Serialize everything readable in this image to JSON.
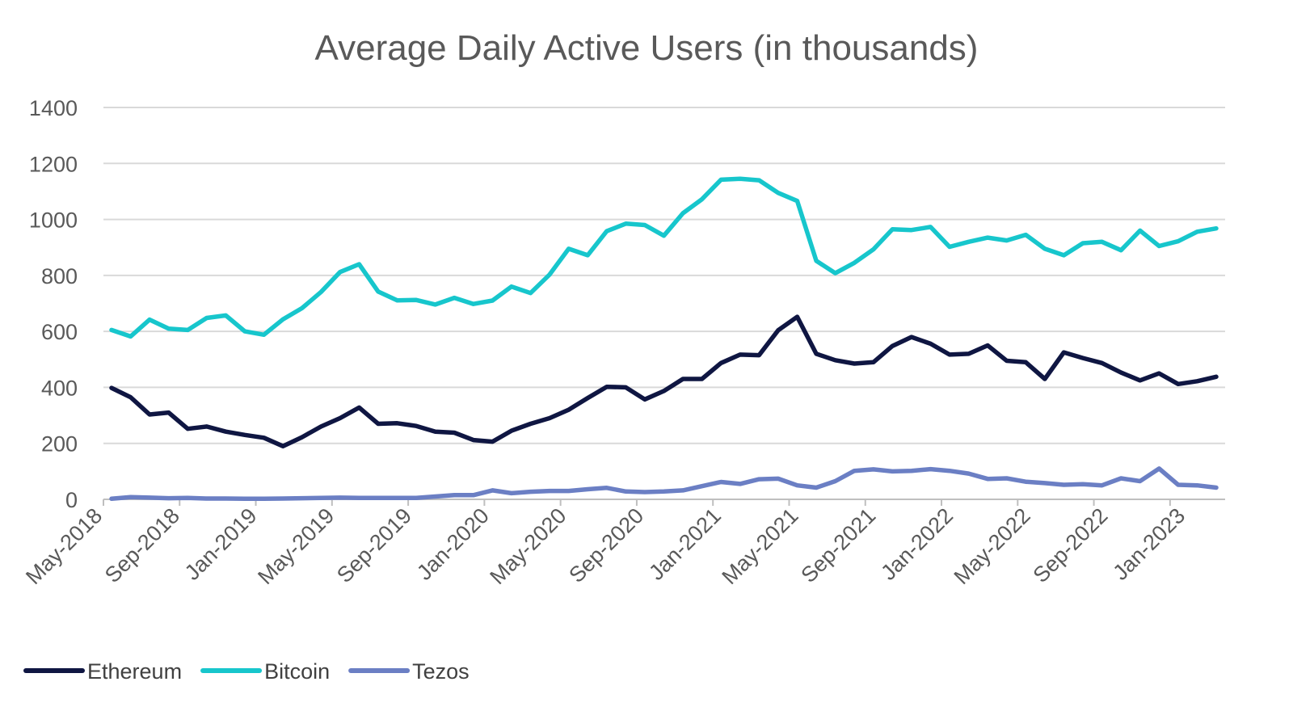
{
  "chart_data": {
    "type": "line",
    "title": "Average Daily Active Users (in thousands)",
    "xlabel": "",
    "ylabel": "",
    "ylim": [
      0,
      1400
    ],
    "yticks": [
      "0",
      "200",
      "400",
      "600",
      "800",
      "1000",
      "1200",
      "1400"
    ],
    "x": [
      "May-2018",
      "Jun-2018",
      "Jul-2018",
      "Aug-2018",
      "Sep-2018",
      "Oct-2018",
      "Nov-2018",
      "Dec-2018",
      "Jan-2019",
      "Feb-2019",
      "Mar-2019",
      "Apr-2019",
      "May-2019",
      "Jun-2019",
      "Jul-2019",
      "Aug-2019",
      "Sep-2019",
      "Oct-2019",
      "Nov-2019",
      "Dec-2019",
      "Jan-2020",
      "Feb-2020",
      "Mar-2020",
      "Apr-2020",
      "May-2020",
      "Jun-2020",
      "Jul-2020",
      "Aug-2020",
      "Sep-2020",
      "Oct-2020",
      "Nov-2020",
      "Dec-2020",
      "Jan-2021",
      "Feb-2021",
      "Mar-2021",
      "Apr-2021",
      "May-2021",
      "Jun-2021",
      "Jul-2021",
      "Aug-2021",
      "Sep-2021",
      "Oct-2021",
      "Nov-2021",
      "Dec-2021",
      "Jan-2022",
      "Feb-2022",
      "Mar-2022",
      "Apr-2022",
      "May-2022",
      "Jun-2022",
      "Jul-2022",
      "Aug-2022",
      "Sep-2022",
      "Oct-2022",
      "Nov-2022",
      "Dec-2022",
      "Jan-2023",
      "Feb-2023",
      "Mar-2023"
    ],
    "xtick_labels": [
      "May-2018",
      "Sep-2018",
      "Jan-2019",
      "May-2019",
      "Sep-2019",
      "Jan-2020",
      "May-2020",
      "Sep-2020",
      "Jan-2021",
      "May-2021",
      "Sep-2021",
      "Jan-2022",
      "May-2022",
      "Sep-2022",
      "Jan-2023"
    ],
    "grid": true,
    "legend_position": "bottom-left",
    "series": [
      {
        "name": "Ethereum",
        "color": "#0f1642",
        "values": [
          398,
          365,
          303,
          310,
          252,
          260,
          242,
          230,
          220,
          190,
          222,
          260,
          290,
          328,
          270,
          272,
          262,
          242,
          238,
          212,
          206,
          245,
          270,
          290,
          320,
          362,
          402,
          400,
          357,
          387,
          430,
          430,
          487,
          517,
          515,
          604,
          652,
          520,
          497,
          485,
          490,
          548,
          580,
          556,
          517,
          520,
          550,
          495,
          490,
          430,
          525,
          505,
          487,
          453,
          425,
          450,
          412,
          422,
          438
        ]
      },
      {
        "name": "Bitcoin",
        "color": "#17c6cc",
        "values": [
          605,
          582,
          642,
          610,
          605,
          648,
          657,
          600,
          588,
          643,
          683,
          741,
          812,
          840,
          742,
          711,
          712,
          696,
          720,
          698,
          710,
          760,
          737,
          803,
          895,
          872,
          958,
          985,
          980,
          942,
          1022,
          1072,
          1142,
          1145,
          1140,
          1095,
          1066,
          852,
          808,
          845,
          893,
          965,
          962,
          973,
          902,
          920,
          935,
          925,
          945,
          895,
          872,
          915,
          920,
          890,
          960,
          905,
          922,
          956,
          968
        ]
      },
      {
        "name": "Tezos",
        "color": "#6b7fc4",
        "values": [
          2,
          8,
          6,
          4,
          5,
          3,
          3,
          2,
          2,
          3,
          4,
          5,
          6,
          5,
          5,
          5,
          5,
          10,
          15,
          15,
          32,
          22,
          27,
          30,
          30,
          36,
          41,
          28,
          26,
          28,
          32,
          47,
          62,
          55,
          72,
          74,
          50,
          42,
          65,
          102,
          107,
          100,
          102,
          108,
          102,
          92,
          73,
          75,
          63,
          58,
          52,
          54,
          50,
          75,
          65,
          110,
          52,
          50,
          42
        ]
      }
    ]
  }
}
